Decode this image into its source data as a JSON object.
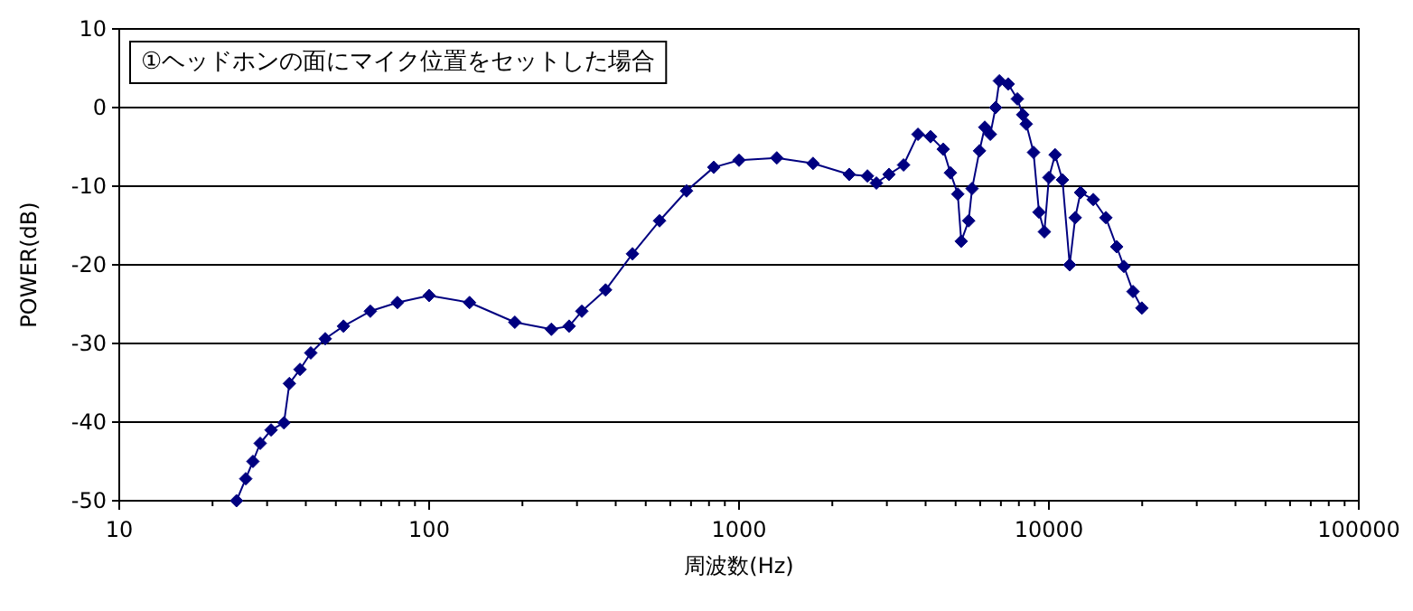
{
  "chart_data": {
    "type": "line",
    "title": "①ヘッドホンの面にマイク位置をセットした場合",
    "xlabel": "周波数(Hz)",
    "ylabel": "POWER(dB)",
    "log": "x",
    "grid": "y",
    "marker": "diamond",
    "line_style": "solid",
    "xlim": [
      10,
      100000
    ],
    "xticks": [
      10,
      100,
      1000,
      10000,
      100000
    ],
    "ylim": [
      -50,
      10
    ],
    "yticks": [
      -50,
      -40,
      -30,
      -20,
      -10,
      0,
      10
    ],
    "series": [
      {
        "color": "#000080",
        "x": [
          23.9,
          25.6,
          27,
          28.5,
          30.9,
          34,
          35.4,
          38.3,
          41.5,
          46.2,
          52.9,
          64.6,
          79,
          100,
          135,
          189,
          248,
          283,
          311,
          371,
          453,
          554,
          677,
          829,
          1000,
          1324,
          1733,
          2268,
          2596,
          2775,
          3048,
          3396,
          3780,
          4150,
          4560,
          4810,
          5080,
          5213,
          5508,
          5650,
          5970,
          6210,
          6470,
          6730,
          6920,
          7390,
          7910,
          8230,
          8450,
          8920,
          9290,
          9670,
          10000,
          10470,
          11060,
          11670,
          12160,
          12650,
          13900,
          15270,
          16550,
          17460,
          18680,
          19950
        ],
        "values": [
          -50,
          -47.2,
          -45,
          -42.7,
          -41,
          -40.1,
          -35.1,
          -33.3,
          -31.2,
          -29.4,
          -27.8,
          -25.9,
          -24.8,
          -23.9,
          -24.8,
          -27.3,
          -28.2,
          -27.8,
          -25.9,
          -23.2,
          -18.6,
          -14.4,
          -10.6,
          -7.6,
          -6.7,
          -6.4,
          -7.1,
          -8.5,
          -8.7,
          -9.6,
          -8.5,
          -7.3,
          -3.4,
          -3.7,
          -5.3,
          -8.3,
          -11,
          -17,
          -14.4,
          -10.3,
          -5.5,
          -2.5,
          -3.4,
          0,
          3.4,
          3,
          1.1,
          -0.9,
          -2.1,
          -5.7,
          -13.3,
          -15.8,
          -8.9,
          -6,
          -9.2,
          -20,
          -14,
          -10.8,
          -11.7,
          -14,
          -17.7,
          -20.2,
          -23.4,
          -25.5
        ]
      }
    ]
  }
}
